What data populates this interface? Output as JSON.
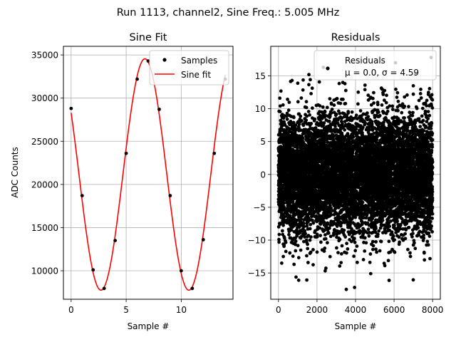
{
  "suptitle": "Run 1113, channel2, Sine Freq.: 5.005 MHz",
  "chart_data": [
    {
      "type": "line",
      "title": "Sine Fit",
      "xlabel": "Sample #",
      "ylabel": "ADC Counts",
      "xlim": [
        -0.7,
        14.7
      ],
      "ylim": [
        6700,
        36000
      ],
      "xticks": [
        0,
        5,
        10
      ],
      "yticks": [
        10000,
        15000,
        20000,
        25000,
        30000,
        35000
      ],
      "grid": true,
      "legend": {
        "placement": "upper right",
        "entries": [
          "Samples",
          "Sine fit"
        ]
      },
      "series": [
        {
          "name": "Samples",
          "kind": "points",
          "color": "#000000",
          "x": [
            0,
            1,
            2,
            3,
            4,
            5,
            6,
            7,
            8,
            9,
            10,
            11,
            12,
            13,
            14
          ],
          "y": [
            28800,
            18700,
            10100,
            7950,
            13500,
            23600,
            32200,
            34300,
            28700,
            18700,
            10000,
            7950,
            13600,
            23600,
            32200
          ]
        },
        {
          "name": "Sine fit",
          "kind": "line",
          "color": "#ff0000",
          "model": {
            "offset": 21150,
            "amplitude": 13400,
            "period_samples": 7.98,
            "peak_at": 6.7
          }
        }
      ]
    },
    {
      "type": "scatter",
      "title": "Residuals",
      "xlabel": "Sample #",
      "ylabel": "",
      "xlim": [
        -400,
        8400
      ],
      "ylim": [
        -19,
        19.5
      ],
      "xticks": [
        0,
        2000,
        4000,
        6000,
        8000
      ],
      "yticks": [
        -15,
        -10,
        -5,
        0,
        5,
        10,
        15
      ],
      "grid": true,
      "legend": {
        "placement": "upper right",
        "entries": [
          "Residuals",
          "μ = 0.0, σ = 4.59"
        ]
      },
      "series": [
        {
          "name": "Residuals",
          "color": "#000000",
          "n_samples": 8000,
          "mean": 0.0,
          "sigma": 4.59,
          "highlighted_outliers": [
            {
              "x": 1580,
              "y": 15.2
            },
            {
              "x": 2330,
              "y": 16.3
            },
            {
              "x": 7920,
              "y": 17.8
            },
            {
              "x": 3520,
              "y": -17.5
            },
            {
              "x": 3950,
              "y": -17.2
            },
            {
              "x": 1050,
              "y": -16.1
            },
            {
              "x": 3340,
              "y": 14.0
            },
            {
              "x": 7100,
              "y": 15.3
            }
          ]
        }
      ]
    }
  ]
}
